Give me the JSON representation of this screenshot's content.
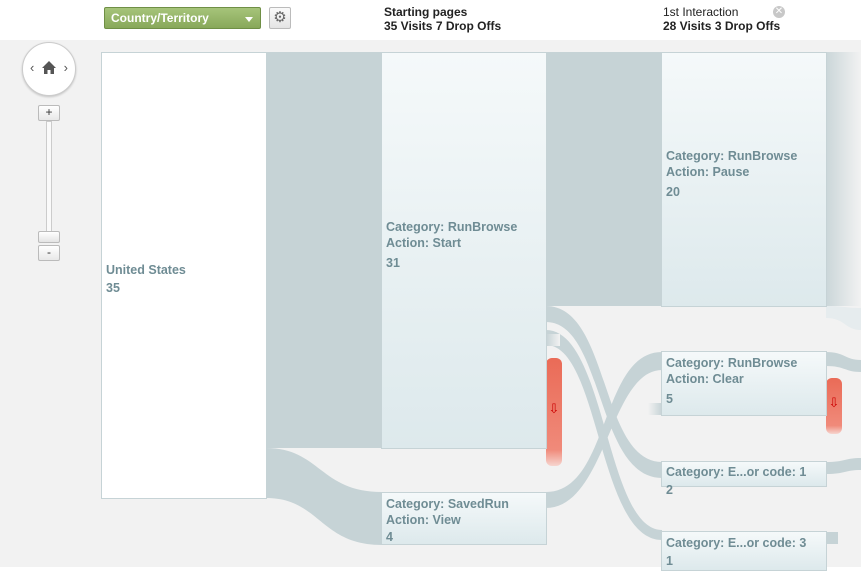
{
  "toolbar": {
    "dimension_label": "Country/Territory",
    "gear_icon": "gear-icon"
  },
  "columns": [
    {
      "title": "Starting pages",
      "subtitle": "35 Visits 7 Drop Offs"
    },
    {
      "title": "1st Interaction",
      "subtitle": "28 Visits 3 Drop Offs"
    }
  ],
  "nav": {
    "left": "‹",
    "right": "›",
    "zoom_in": "+",
    "zoom_out": "-"
  },
  "nodes": {
    "country": {
      "line1": "United States",
      "count": "35"
    },
    "start_runbrowse": {
      "line1": "Category: RunBrowse",
      "line2": "Action: Start",
      "count": "31"
    },
    "start_savedrun": {
      "line1": "Category: SavedRun",
      "line2": "Action: View",
      "count": "4"
    },
    "int_pause": {
      "line1": "Category: RunBrowse",
      "line2": "Action: Pause",
      "count": "20"
    },
    "int_clear": {
      "line1": "Category: RunBrowse",
      "line2": "Action: Clear",
      "count": "5"
    },
    "int_error1": {
      "line1": "Category: E...or code: 1",
      "count": "2"
    },
    "int_error3": {
      "line1": "Category: E...or code: 3",
      "count": "1"
    }
  },
  "colors": {
    "flow": "#c6d3d6",
    "dropoff": "#e8705f",
    "node_border": "#c6d3d6",
    "dimension": "#94b267"
  }
}
